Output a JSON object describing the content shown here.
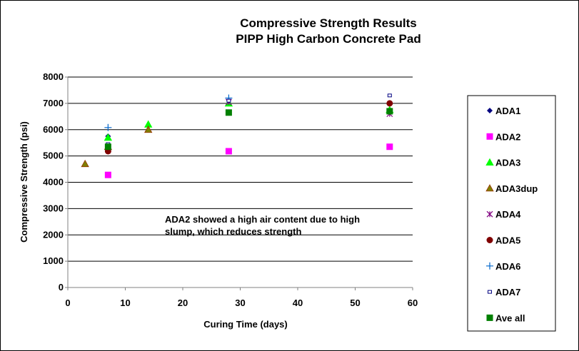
{
  "chart_data": {
    "type": "scatter",
    "title": [
      "Compressive Strength Results",
      "PIPP High Carbon Concrete Pad"
    ],
    "xlabel": "Curing Time (days)",
    "ylabel": "Compressive Strength (psi)",
    "xlim": [
      0,
      60
    ],
    "ylim": [
      0,
      8000
    ],
    "xticks": [
      0,
      10,
      20,
      30,
      40,
      50,
      60
    ],
    "yticks": [
      0,
      1000,
      2000,
      3000,
      4000,
      5000,
      6000,
      7000,
      8000
    ],
    "grid": "horizontal",
    "legend_position": "right",
    "annotation": [
      "ADA2 showed a high air content due to high",
      "slump, which reduces strength"
    ],
    "series": [
      {
        "name": "ADA1",
        "marker": "diamond",
        "color": "#000080",
        "points": [
          [
            7,
            5750
          ],
          [
            56,
            7000
          ]
        ]
      },
      {
        "name": "ADA2",
        "marker": "square",
        "color": "#ff00ff",
        "points": [
          [
            7,
            4280
          ],
          [
            28,
            5180
          ],
          [
            56,
            5350
          ]
        ]
      },
      {
        "name": "ADA3",
        "marker": "triangle",
        "color": "#00ff00",
        "points": [
          [
            7,
            5700
          ],
          [
            14,
            6200
          ],
          [
            28,
            7000
          ],
          [
            56,
            6750
          ]
        ]
      },
      {
        "name": "ADA3dup",
        "marker": "triangle",
        "color": "#808000",
        "stroke": "#993300",
        "points": [
          [
            3,
            4700
          ],
          [
            7,
            5350
          ],
          [
            14,
            6000
          ]
        ]
      },
      {
        "name": "ADA4",
        "marker": "asterisk",
        "color": "#800080",
        "points": [
          [
            7,
            5300
          ],
          [
            28,
            7050
          ],
          [
            56,
            6600
          ]
        ]
      },
      {
        "name": "ADA5",
        "marker": "circle",
        "color": "#800000",
        "points": [
          [
            7,
            5180
          ],
          [
            56,
            7000
          ]
        ]
      },
      {
        "name": "ADA6",
        "marker": "plus",
        "color": "#0066cc",
        "points": [
          [
            7,
            6080
          ],
          [
            28,
            7200
          ]
        ]
      },
      {
        "name": "ADA7",
        "marker": "small-square",
        "color": "#000080",
        "points": [
          [
            7,
            5450
          ],
          [
            28,
            7100
          ],
          [
            56,
            7300
          ]
        ]
      },
      {
        "name": "Ave all",
        "marker": "square",
        "color": "#008000",
        "points": [
          [
            7,
            5350
          ],
          [
            28,
            6650
          ],
          [
            56,
            6700
          ]
        ]
      }
    ]
  }
}
